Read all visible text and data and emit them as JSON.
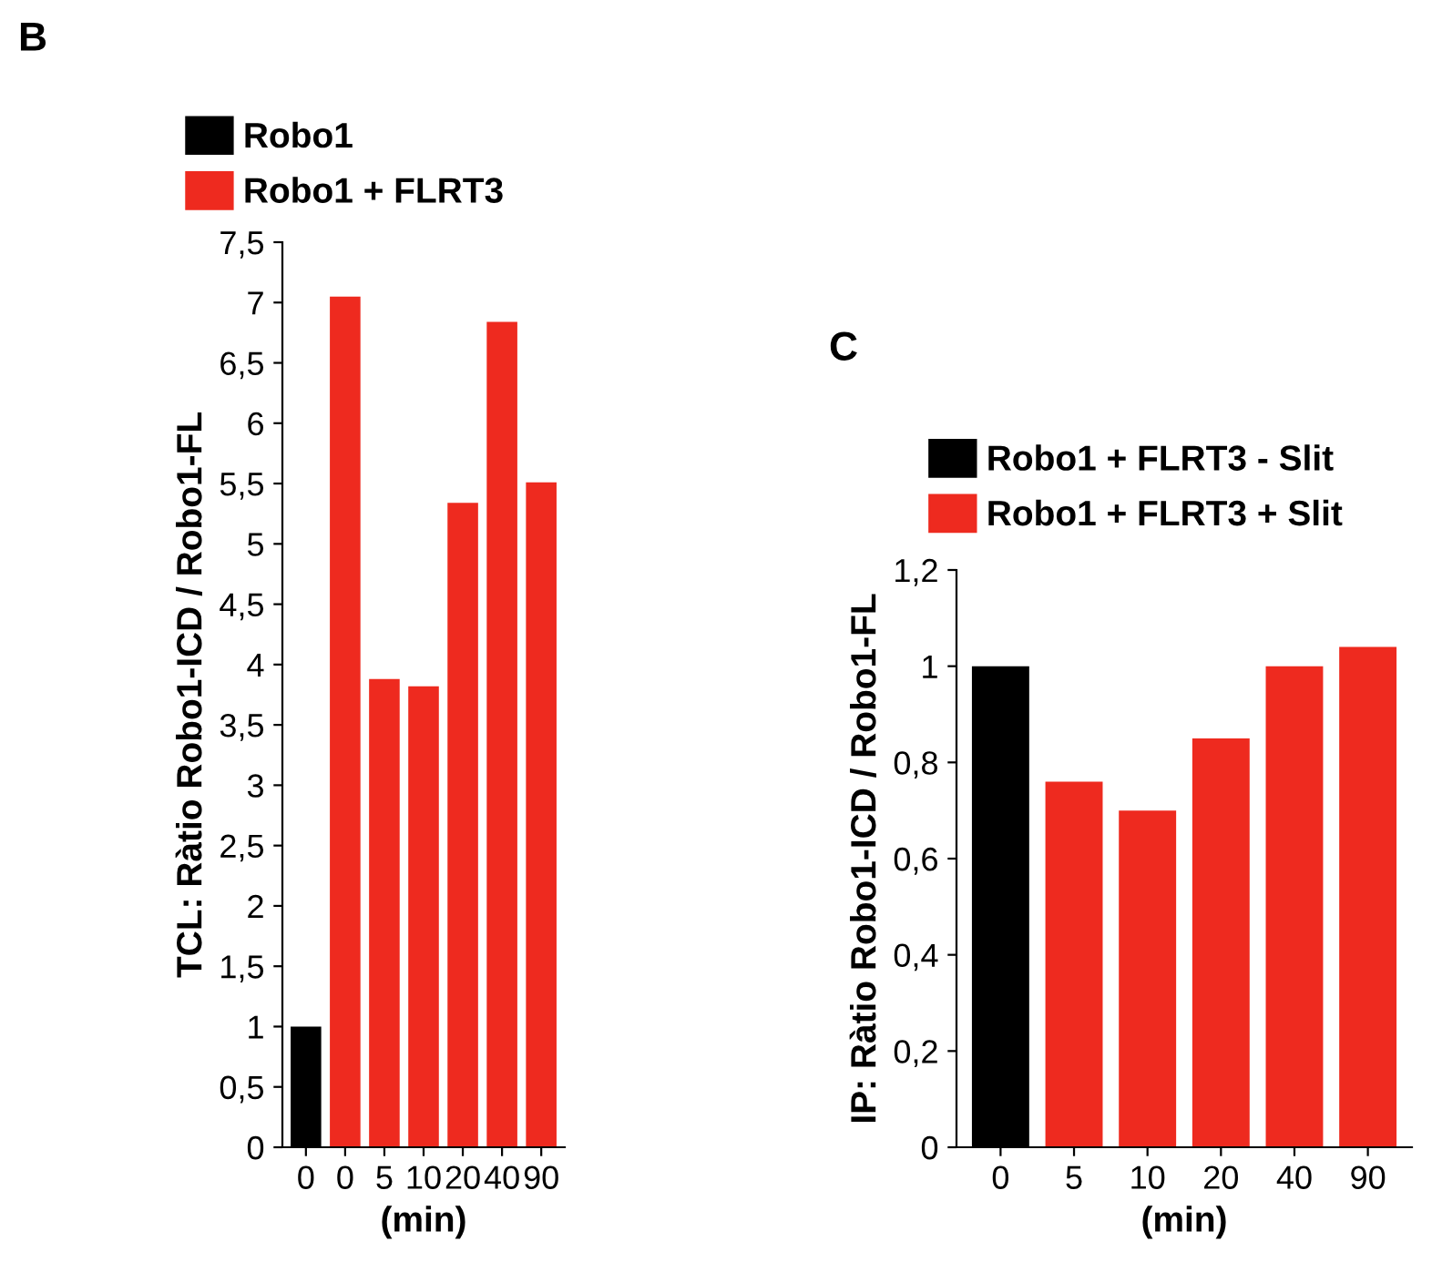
{
  "chart_data": [
    {
      "type": "bar",
      "annotations": [
        "B"
      ],
      "xlabel": "(min)",
      "ylabel": "TCL: Ràtio Robo1-ICD / Robo1-FL",
      "categories": [
        "0",
        "0",
        "5",
        "10",
        "20",
        "40",
        "90"
      ],
      "series": [
        {
          "name": "Robo1",
          "color": "#000000",
          "values": [
            1.0,
            null,
            null,
            null,
            null,
            null,
            null
          ]
        },
        {
          "name": "Robo1 + FLRT3",
          "color": "#ee2a1f",
          "values": [
            null,
            7.05,
            3.88,
            3.82,
            5.34,
            6.84,
            5.51
          ]
        }
      ],
      "ylim": [
        0,
        7.5
      ],
      "yticks": [
        0,
        {
          "value": 0.5,
          "label": "0,5"
        },
        1,
        {
          "value": 1.5,
          "label": "1,5"
        },
        2,
        {
          "value": 2.5,
          "label": "2,5"
        },
        3,
        {
          "value": 3.5,
          "label": "3,5"
        },
        4,
        {
          "value": 4.5,
          "label": "4,5"
        },
        5,
        {
          "value": 5.5,
          "label": "5,5"
        },
        6,
        {
          "value": 6.5,
          "label": "6,5"
        },
        7,
        {
          "value": 7.5,
          "label": "7,5"
        }
      ],
      "grid": false,
      "legend": "top left"
    },
    {
      "type": "bar",
      "annotations": [
        "C"
      ],
      "xlabel": "(min)",
      "ylabel": "IP: Ràtio Robo1-ICD / Robo1-FL",
      "categories": [
        "0",
        "5",
        "10",
        "20",
        "40",
        "90"
      ],
      "series": [
        {
          "name": "Robo1 + FLRT3 - Slit",
          "color": "#000000",
          "values": [
            1.0,
            null,
            null,
            null,
            null,
            null
          ]
        },
        {
          "name": "Robo1 + FLRT3 + Slit",
          "color": "#ee2a1f",
          "values": [
            null,
            0.76,
            0.7,
            0.85,
            1.0,
            1.04
          ]
        }
      ],
      "ylim": [
        0,
        1.2
      ],
      "yticks": [
        0,
        {
          "value": 0.2,
          "label": "0,2"
        },
        {
          "value": 0.4,
          "label": "0,4"
        },
        {
          "value": 0.6,
          "label": "0,6"
        },
        {
          "value": 0.8,
          "label": "0,8"
        },
        1,
        {
          "value": 1.2,
          "label": "1,2"
        }
      ],
      "grid": false,
      "legend": "top left"
    }
  ]
}
